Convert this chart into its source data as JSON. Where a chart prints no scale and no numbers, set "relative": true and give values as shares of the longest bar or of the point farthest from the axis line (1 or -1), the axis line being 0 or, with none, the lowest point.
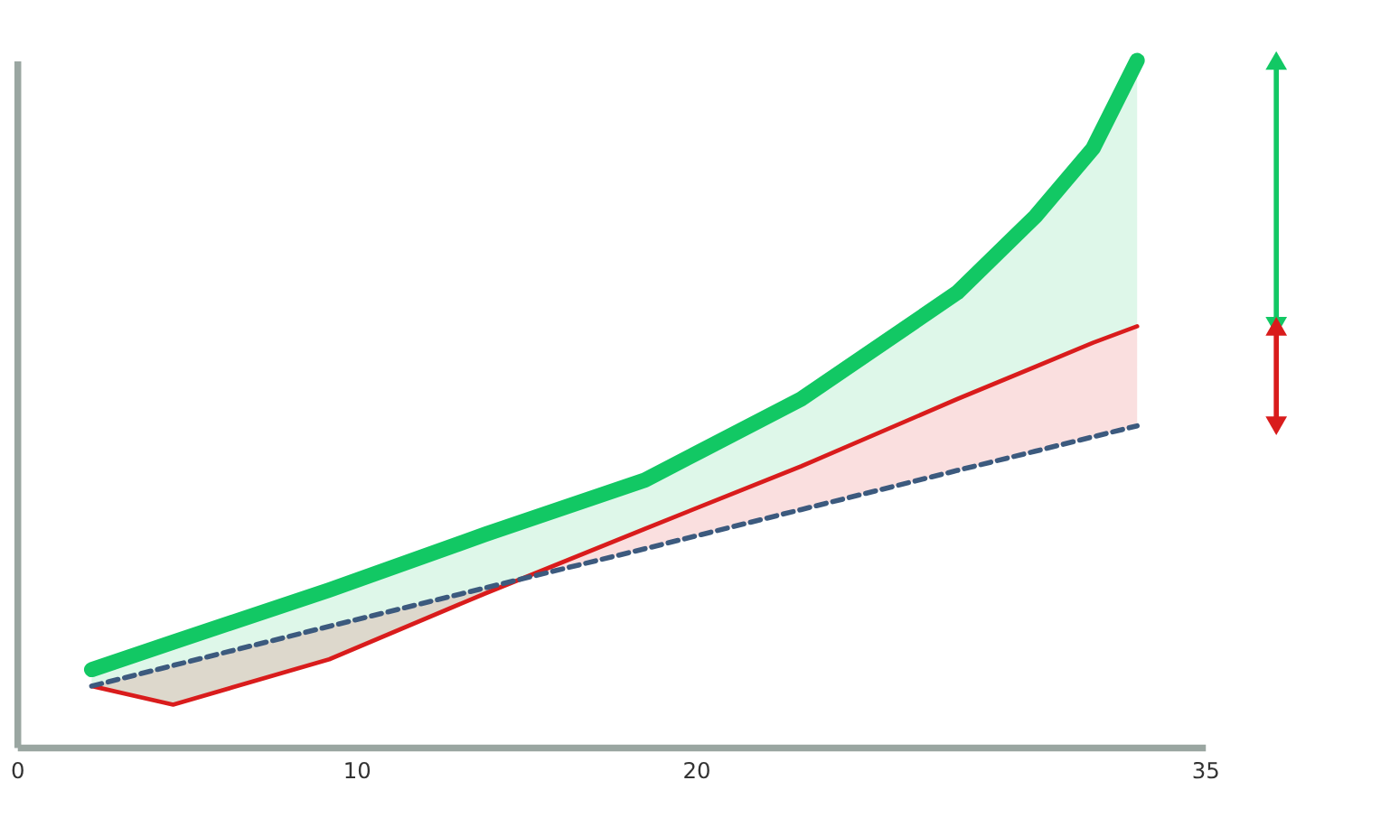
{
  "chart_data": {
    "type": "line",
    "relative": true,
    "x": [
      2.2,
      4.6,
      9.2,
      13.8,
      18.5,
      23.1,
      27.7,
      30,
      31.7,
      33
    ],
    "xlim": [
      0,
      35
    ],
    "xticks": [
      0,
      10,
      20,
      35
    ],
    "series": [
      {
        "color": "#12c864",
        "line_style": "solid",
        "values": [
          0.113,
          0.153,
          0.229,
          0.31,
          0.389,
          0.507,
          0.662,
          0.773,
          0.872,
          1.0
        ],
        "lower": [
          0.089,
          0.062,
          0.128,
          0.224,
          0.318,
          0.409,
          0.507,
          0.554,
          0.589,
          0.613
        ],
        "upper": [
          0.113,
          0.153,
          0.229,
          0.31,
          0.389,
          0.507,
          0.662,
          0.773,
          0.872,
          1.0
        ]
      },
      {
        "color": "#d91c1c",
        "line_style": "solid",
        "values": [
          0.089,
          0.062,
          0.128,
          0.224,
          0.318,
          0.409,
          0.507,
          0.554,
          0.589,
          0.613
        ],
        "lower": [
          0.089,
          0.119,
          0.176,
          0.232,
          0.289,
          0.346,
          0.403,
          0.431,
          0.452,
          0.468
        ],
        "upper": [
          0.089,
          0.062,
          0.128,
          0.224,
          0.318,
          0.409,
          0.507,
          0.554,
          0.589,
          0.613
        ]
      },
      {
        "color": "#3c5a7e",
        "line_style": "dashed",
        "values": [
          0.089,
          0.119,
          0.176,
          0.232,
          0.289,
          0.346,
          0.403,
          0.431,
          0.452,
          0.468
        ]
      }
    ],
    "grid": false,
    "tick_labels": "x"
  }
}
